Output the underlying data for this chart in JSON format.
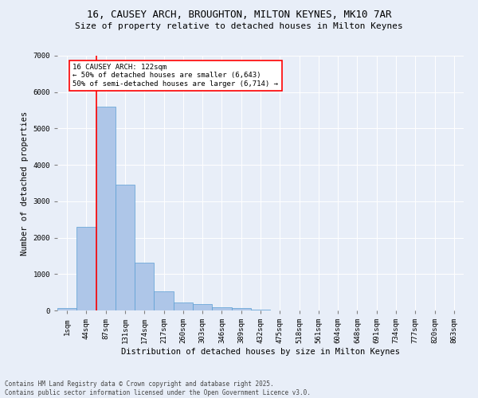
{
  "title_line1": "16, CAUSEY ARCH, BROUGHTON, MILTON KEYNES, MK10 7AR",
  "title_line2": "Size of property relative to detached houses in Milton Keynes",
  "categories": [
    "1sqm",
    "44sqm",
    "87sqm",
    "131sqm",
    "174sqm",
    "217sqm",
    "260sqm",
    "303sqm",
    "346sqm",
    "389sqm",
    "432sqm",
    "475sqm",
    "518sqm",
    "561sqm",
    "604sqm",
    "648sqm",
    "691sqm",
    "734sqm",
    "777sqm",
    "820sqm",
    "863sqm"
  ],
  "values": [
    75,
    2300,
    5600,
    3450,
    1320,
    520,
    215,
    175,
    90,
    55,
    30,
    0,
    0,
    0,
    0,
    0,
    0,
    0,
    0,
    0,
    0
  ],
  "bar_color": "#aec6e8",
  "bar_edge_color": "#5a9fd4",
  "background_color": "#e8eef8",
  "vline_color": "red",
  "ylabel": "Number of detached properties",
  "xlabel": "Distribution of detached houses by size in Milton Keynes",
  "ylim": [
    0,
    7000
  ],
  "annotation_title": "16 CAUSEY ARCH: 122sqm",
  "annotation_line1": "← 50% of detached houses are smaller (6,643)",
  "annotation_line2": "50% of semi-detached houses are larger (6,714) →",
  "footer_line1": "Contains HM Land Registry data © Crown copyright and database right 2025.",
  "footer_line2": "Contains public sector information licensed under the Open Government Licence v3.0.",
  "title_fontsize": 9,
  "subtitle_fontsize": 8,
  "axis_label_fontsize": 7.5,
  "tick_fontsize": 6.5,
  "annotation_fontsize": 6.5,
  "footer_fontsize": 5.5
}
